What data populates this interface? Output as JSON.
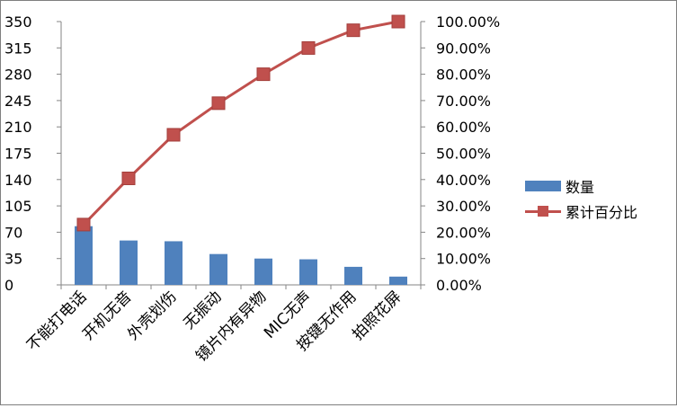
{
  "chart_data": {
    "type": "bar+line",
    "categories": [
      "不能打电话",
      "开机无音",
      "外壳划伤",
      "无振动",
      "镜片内有异物",
      "MIC无声",
      "按键无作用",
      "拍照花屏"
    ],
    "series": [
      {
        "name": "数量",
        "type": "bar",
        "axis": "left",
        "color": "#4f81bd",
        "values": [
          78,
          59,
          58,
          41,
          35,
          34,
          24,
          11
        ]
      },
      {
        "name": "累计百分比",
        "type": "line",
        "axis": "right",
        "color": "#c0504d",
        "values": [
          0.229,
          0.4045,
          0.57,
          0.69,
          0.8,
          0.8996,
          0.967,
          1.0
        ]
      }
    ],
    "y_left": {
      "min": 0,
      "max": 350,
      "step": 35,
      "ticks": [
        "0",
        "35",
        "70",
        "105",
        "140",
        "175",
        "210",
        "245",
        "280",
        "315",
        "350"
      ]
    },
    "y_right": {
      "min": 0,
      "max": 1,
      "step": 0.1,
      "ticks": [
        "0.00%",
        "10.00%",
        "20.00%",
        "30.00%",
        "40.00%",
        "50.00%",
        "60.00%",
        "70.00%",
        "80.00%",
        "90.00%",
        "100.00%"
      ]
    },
    "grid": false,
    "legend": "right"
  }
}
